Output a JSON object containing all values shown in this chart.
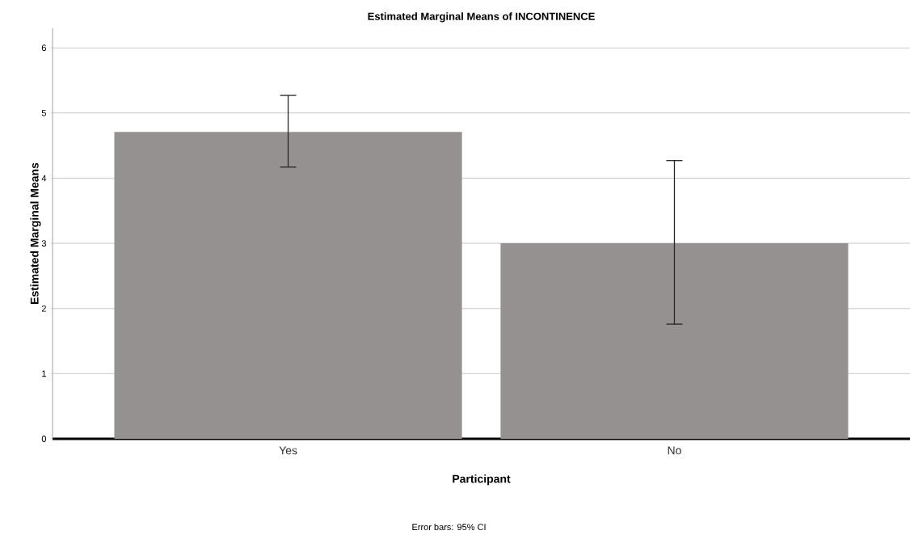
{
  "chart_data": {
    "type": "bar",
    "title": "Estimated Marginal Means of INCONTINENCE",
    "xlabel": "Participant",
    "ylabel": "Estimated Marginal Means",
    "categories": [
      "Yes",
      "No"
    ],
    "values": [
      4.71,
      3.0
    ],
    "color": "#959190",
    "errors": [
      [
        4.17,
        5.27
      ],
      [
        1.76,
        4.27
      ]
    ],
    "ylim": [
      0,
      6.3
    ],
    "yticks": [
      0,
      1,
      2,
      3,
      4,
      5,
      6
    ],
    "grid": "y",
    "annotations": [
      "Error bars: 95% CI"
    ]
  }
}
